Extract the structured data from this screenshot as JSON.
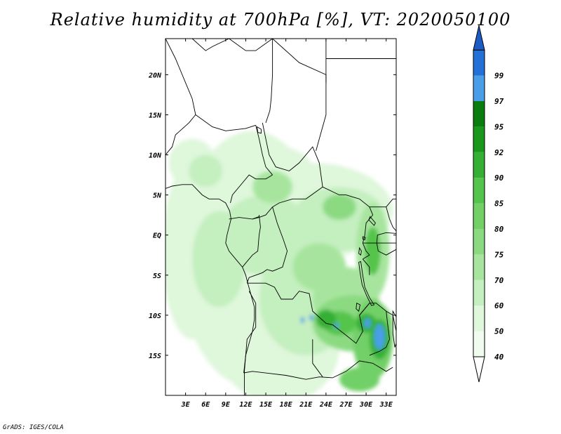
{
  "title": "Relative humidity at 700hPa [%], VT: 2020050100",
  "variable": "Relative humidity",
  "level": "700hPa",
  "units": "%",
  "valid_time": "2020050100",
  "credit": "GrADS: IGES/COLA",
  "axes": {
    "lon_range": [
      0,
      34.5
    ],
    "lat_range": [
      -20,
      24.5
    ],
    "lon_ticks": [
      {
        "value": 3,
        "label": "3E"
      },
      {
        "value": 6,
        "label": "6E"
      },
      {
        "value": 9,
        "label": "9E"
      },
      {
        "value": 12,
        "label": "12E"
      },
      {
        "value": 15,
        "label": "15E"
      },
      {
        "value": 18,
        "label": "18E"
      },
      {
        "value": 21,
        "label": "21E"
      },
      {
        "value": 24,
        "label": "24E"
      },
      {
        "value": 27,
        "label": "27E"
      },
      {
        "value": 30,
        "label": "30E"
      },
      {
        "value": 33,
        "label": "33E"
      }
    ],
    "lat_ticks": [
      {
        "value": 20,
        "label": "20N"
      },
      {
        "value": 15,
        "label": "15N"
      },
      {
        "value": 10,
        "label": "10N"
      },
      {
        "value": 5,
        "label": "5N"
      },
      {
        "value": 0,
        "label": "EQ"
      },
      {
        "value": -5,
        "label": "5S"
      },
      {
        "value": -10,
        "label": "10S"
      },
      {
        "value": -15,
        "label": "15S"
      }
    ]
  },
  "colorbar": {
    "levels": [
      {
        "label": "40",
        "color": "#f0fcee"
      },
      {
        "label": "50",
        "color": "#dff7db"
      },
      {
        "label": "60",
        "color": "#c4efbf"
      },
      {
        "label": "70",
        "color": "#a7e59f"
      },
      {
        "label": "75",
        "color": "#8bda82"
      },
      {
        "label": "80",
        "color": "#72d067"
      },
      {
        "label": "85",
        "color": "#55c44c"
      },
      {
        "label": "90",
        "color": "#35b034"
      },
      {
        "label": "92",
        "color": "#1a981b"
      },
      {
        "label": "95",
        "color": "#0b7d0e"
      },
      {
        "label": "97",
        "color": "#4a9ee8"
      },
      {
        "label": "99",
        "color": "#2370d6"
      }
    ],
    "below_color": "#ffffff",
    "above_color": "#1a5bc4"
  },
  "humidity_patches": [
    {
      "lon": 4,
      "lat": -2,
      "rx": 4.5,
      "ry": 11,
      "level": 1
    },
    {
      "lon": 13,
      "lat": -3,
      "rx": 11,
      "ry": 16,
      "level": 1
    },
    {
      "lon": 22,
      "lat": 3,
      "rx": 12,
      "ry": 6,
      "level": 1
    },
    {
      "lon": 17,
      "lat": -14,
      "rx": 9,
      "ry": 7,
      "level": 1
    },
    {
      "lon": 4,
      "lat": 9,
      "rx": 3.5,
      "ry": 3,
      "level": 1
    },
    {
      "lon": 17,
      "lat": 8,
      "rx": 5,
      "ry": 3,
      "level": 1
    },
    {
      "lon": 8,
      "lat": -3,
      "rx": 4,
      "ry": 6,
      "level": 2
    },
    {
      "lon": 15,
      "lat": 0,
      "rx": 7,
      "ry": 5,
      "level": 2
    },
    {
      "lon": 21,
      "lat": -8,
      "rx": 7,
      "ry": 7,
      "level": 2
    },
    {
      "lon": 26,
      "lat": 2,
      "rx": 7,
      "ry": 4,
      "level": 2
    },
    {
      "lon": 6,
      "lat": 8,
      "rx": 2.5,
      "ry": 2,
      "level": 2
    },
    {
      "lon": 23,
      "lat": -4,
      "rx": 4,
      "ry": 3,
      "level": 3
    },
    {
      "lon": 27,
      "lat": -8,
      "rx": 5,
      "ry": 4,
      "level": 3
    },
    {
      "lon": 16,
      "lat": 6,
      "rx": 3,
      "ry": 2,
      "level": 3
    },
    {
      "lon": 26,
      "lat": 3.5,
      "rx": 2.5,
      "ry": 1.6,
      "level": 4
    },
    {
      "lon": 31,
      "lat": -2,
      "rx": 2.5,
      "ry": 6,
      "level": 3
    },
    {
      "lon": 28,
      "lat": -11,
      "rx": 6,
      "ry": 3.5,
      "level": 4
    },
    {
      "lon": 31,
      "lat": -13,
      "rx": 3,
      "ry": 5,
      "level": 5
    },
    {
      "lon": 29,
      "lat": -18,
      "rx": 3,
      "ry": 1.5,
      "level": 5
    },
    {
      "lon": 26,
      "lat": -11,
      "rx": 2.5,
      "ry": 1.5,
      "level": 6
    },
    {
      "lon": 30,
      "lat": -11,
      "rx": 1.5,
      "ry": 1.2,
      "level": 7
    },
    {
      "lon": 32,
      "lat": -13,
      "rx": 1.5,
      "ry": 2.5,
      "level": 7
    },
    {
      "lon": 31,
      "lat": -2,
      "rx": 1.2,
      "ry": 3,
      "level": 6
    },
    {
      "lon": 24,
      "lat": -10.5,
      "rx": 1.5,
      "ry": 1.2,
      "level": 7
    },
    {
      "lon": 32,
      "lat": -12.7,
      "rx": 0.8,
      "ry": 1.6,
      "level": 10
    },
    {
      "lon": 30.2,
      "lat": -11,
      "rx": 0.5,
      "ry": 0.6,
      "level": 10
    },
    {
      "lon": 20.5,
      "lat": -10.6,
      "rx": 0.3,
      "ry": 0.4,
      "level": 10
    },
    {
      "lon": 21.8,
      "lat": -10.3,
      "rx": 0.3,
      "ry": 0.4,
      "level": 10
    },
    {
      "lon": 25.6,
      "lat": -11.3,
      "rx": 0.3,
      "ry": 0.4,
      "level": 10
    }
  ],
  "boundaries": [
    [
      [
        0,
        24.5
      ],
      [
        1.5,
        22
      ],
      [
        3,
        19
      ],
      [
        4,
        17
      ],
      [
        4.5,
        15
      ]
    ],
    [
      [
        4.5,
        15
      ],
      [
        3.5,
        14
      ],
      [
        1.5,
        12.5
      ],
      [
        1,
        11
      ],
      [
        0,
        10
      ]
    ],
    [
      [
        4,
        24.5
      ],
      [
        6,
        23
      ],
      [
        7,
        23.5
      ],
      [
        9.5,
        24.5
      ]
    ],
    [
      [
        9.5,
        24.5
      ],
      [
        12,
        23
      ],
      [
        13.5,
        23
      ],
      [
        16,
        24.5
      ]
    ],
    [
      [
        4.5,
        15
      ],
      [
        7,
        13.5
      ],
      [
        9,
        13
      ],
      [
        12,
        13.3
      ],
      [
        13.5,
        13.7
      ]
    ],
    [
      [
        13.5,
        13.7
      ],
      [
        14,
        12
      ],
      [
        14.5,
        10
      ],
      [
        15,
        8.5
      ],
      [
        16,
        7.5
      ]
    ],
    [
      [
        14.5,
        14
      ],
      [
        15,
        12
      ],
      [
        15.5,
        10
      ],
      [
        16.5,
        8.5
      ],
      [
        18.5,
        8
      ],
      [
        20,
        9
      ],
      [
        22,
        11
      ],
      [
        23,
        9
      ],
      [
        23.5,
        6
      ]
    ],
    [
      [
        16,
        24.5
      ],
      [
        16,
        20
      ],
      [
        15.8,
        17
      ],
      [
        15.6,
        15.5
      ],
      [
        15,
        14
      ]
    ],
    [
      [
        16,
        24.5
      ],
      [
        20,
        21.5
      ],
      [
        24,
        20
      ],
      [
        24,
        19
      ]
    ],
    [
      [
        24,
        24.5
      ],
      [
        24,
        19.5
      ],
      [
        24,
        15
      ],
      [
        23,
        12
      ],
      [
        22.5,
        10.5
      ]
    ],
    [
      [
        24,
        22
      ],
      [
        29,
        22
      ],
      [
        34.5,
        22
      ]
    ],
    [
      [
        23.5,
        6
      ],
      [
        26,
        5
      ],
      [
        27,
        5
      ],
      [
        29,
        4.5
      ],
      [
        30.5,
        3.5
      ],
      [
        31,
        3.5
      ],
      [
        33,
        3.5
      ],
      [
        34,
        4.5
      ],
      [
        34.5,
        4.5
      ]
    ],
    [
      [
        16,
        3.5
      ],
      [
        17,
        4
      ],
      [
        19,
        4.5
      ],
      [
        21,
        4.5
      ],
      [
        23.5,
        6
      ]
    ],
    [
      [
        13,
        2
      ],
      [
        14,
        2.2
      ],
      [
        15,
        2.5
      ],
      [
        16,
        3.5
      ]
    ],
    [
      [
        9.5,
        2
      ],
      [
        11,
        2.2
      ],
      [
        13,
        2
      ],
      [
        14,
        2.3
      ]
    ],
    [
      [
        9.7,
        4
      ],
      [
        10,
        5
      ],
      [
        11.5,
        6.5
      ],
      [
        12.5,
        7.5
      ],
      [
        13.5,
        7
      ],
      [
        15,
        7
      ],
      [
        16,
        7.5
      ]
    ],
    [
      [
        14,
        2.5
      ],
      [
        14.2,
        1
      ],
      [
        14,
        0
      ],
      [
        13.8,
        -2
      ],
      [
        13,
        -2.5
      ],
      [
        12,
        -3.5
      ],
      [
        11.5,
        -4
      ]
    ],
    [
      [
        16,
        3.5
      ],
      [
        16.7,
        1.5
      ],
      [
        17.6,
        -0.5
      ],
      [
        18.2,
        -2
      ],
      [
        17.5,
        -4
      ],
      [
        16,
        -4.5
      ],
      [
        15.2,
        -4.3
      ],
      [
        14.5,
        -4.7
      ],
      [
        13.5,
        -5
      ],
      [
        12.5,
        -5.3
      ],
      [
        12.2,
        -6
      ]
    ],
    [
      [
        12.2,
        -6
      ],
      [
        13,
        -6
      ],
      [
        15,
        -6
      ],
      [
        16.3,
        -6.5
      ],
      [
        17.3,
        -8
      ],
      [
        19,
        -8
      ],
      [
        20,
        -7
      ],
      [
        21.5,
        -7.3
      ],
      [
        22,
        -9.5
      ],
      [
        24,
        -11
      ],
      [
        25,
        -11.2
      ],
      [
        27,
        -12.5
      ],
      [
        28.5,
        -13.5
      ],
      [
        29.5,
        -12
      ],
      [
        29,
        -10
      ],
      [
        30.5,
        -8.5
      ]
    ],
    [
      [
        11.7,
        -17.2
      ],
      [
        12,
        -15
      ],
      [
        12.2,
        -13
      ],
      [
        13.5,
        -11.5
      ],
      [
        13.5,
        -8.5
      ],
      [
        12.5,
        -7
      ]
    ],
    [
      [
        11.7,
        -17.2
      ],
      [
        13,
        -17
      ],
      [
        18,
        -17.5
      ],
      [
        21,
        -18
      ],
      [
        23,
        -17.7
      ],
      [
        25,
        -17.8
      ]
    ],
    [
      [
        22,
        -13
      ],
      [
        22,
        -16
      ],
      [
        23.5,
        -17.7
      ]
    ],
    [
      [
        25,
        -17.8
      ],
      [
        27,
        -17
      ],
      [
        29,
        -15.7
      ],
      [
        31,
        -16
      ],
      [
        32,
        -16.5
      ],
      [
        33,
        -17
      ],
      [
        34,
        -16.5
      ]
    ],
    [
      [
        29,
        -10
      ],
      [
        30.5,
        -8.5
      ],
      [
        31.5,
        -8.5
      ],
      [
        33,
        -9.5
      ],
      [
        34,
        -10
      ],
      [
        34.5,
        -12
      ]
    ],
    [
      [
        33,
        -9.5
      ],
      [
        33.2,
        -11
      ],
      [
        33.5,
        -13
      ],
      [
        33,
        -14
      ],
      [
        32,
        -14.5
      ],
      [
        30.5,
        -15
      ]
    ],
    [
      [
        29.5,
        -1
      ],
      [
        30.5,
        -1
      ],
      [
        31,
        -1
      ],
      [
        34,
        -1
      ],
      [
        34.5,
        -1
      ]
    ],
    [
      [
        29.5,
        -1
      ],
      [
        30,
        -2
      ],
      [
        30.5,
        -2.5
      ],
      [
        29.5,
        -3
      ]
    ],
    [
      [
        29.5,
        -3
      ],
      [
        30,
        -3.5
      ],
      [
        30.5,
        -4
      ],
      [
        30.5,
        -5
      ]
    ],
    [
      [
        30.5,
        3.5
      ],
      [
        31,
        2.5
      ],
      [
        30,
        1.5
      ],
      [
        29.8,
        0
      ],
      [
        29.5,
        -1
      ]
    ],
    [
      [
        34.5,
        0.5
      ],
      [
        34,
        1
      ],
      [
        33.5,
        2
      ],
      [
        33,
        3.5
      ]
    ]
  ],
  "coastline": [
    [
      0,
      5.8
    ],
    [
      1,
      6.1
    ],
    [
      2.5,
      6.3
    ],
    [
      4,
      6.3
    ],
    [
      5.5,
      5
    ],
    [
      6.5,
      4.5
    ],
    [
      8,
      4.5
    ],
    [
      9,
      4
    ],
    [
      9.6,
      3
    ],
    [
      9.8,
      2
    ],
    [
      9.5,
      1
    ],
    [
      9.2,
      0
    ],
    [
      9,
      -1
    ],
    [
      9.5,
      -2
    ],
    [
      10.5,
      -3
    ],
    [
      11.5,
      -4
    ],
    [
      12,
      -5
    ],
    [
      12.3,
      -6
    ],
    [
      12.8,
      -7.5
    ],
    [
      13.3,
      -9
    ],
    [
      13.3,
      -10.5
    ],
    [
      13,
      -12
    ],
    [
      12.5,
      -13.5
    ],
    [
      12,
      -15
    ],
    [
      11.8,
      -17
    ],
    [
      11.8,
      -20
    ]
  ],
  "lakes": [
    {
      "name": "Lake Tanganyika",
      "points": [
        [
          29.2,
          -3.3
        ],
        [
          29.5,
          -5
        ],
        [
          29.8,
          -6.5
        ],
        [
          30.5,
          -7.8
        ],
        [
          31.2,
          -8.7
        ],
        [
          30.8,
          -8.8
        ],
        [
          30.1,
          -7.6
        ],
        [
          29.4,
          -6.2
        ],
        [
          29.1,
          -4.7
        ],
        [
          28.9,
          -3.4
        ]
      ]
    },
    {
      "name": "Lake Kivu",
      "points": [
        [
          29,
          -1.6
        ],
        [
          29.3,
          -2
        ],
        [
          29.2,
          -2.5
        ],
        [
          28.9,
          -2.3
        ]
      ]
    },
    {
      "name": "Lake Albert",
      "points": [
        [
          30.6,
          2.3
        ],
        [
          31.4,
          1.5
        ],
        [
          31.2,
          1.2
        ],
        [
          30.4,
          1.9
        ]
      ]
    },
    {
      "name": "Lake Edward",
      "points": [
        [
          29.5,
          -0.2
        ],
        [
          29.9,
          -0.3
        ],
        [
          29.8,
          -0.6
        ],
        [
          29.5,
          -0.5
        ]
      ]
    },
    {
      "name": "Lake Victoria",
      "points": [
        [
          31.7,
          0
        ],
        [
          33,
          0.3
        ],
        [
          34.5,
          0.2
        ],
        [
          34.5,
          -1.8
        ],
        [
          33,
          -2.5
        ],
        [
          31.8,
          -2
        ],
        [
          31.6,
          -1
        ]
      ]
    },
    {
      "name": "Lake Mweru",
      "points": [
        [
          28.6,
          -8.5
        ],
        [
          29.1,
          -8.7
        ],
        [
          28.9,
          -9.5
        ],
        [
          28.5,
          -9.2
        ]
      ]
    },
    {
      "name": "Lake Malawi",
      "points": [
        [
          34,
          -9.5
        ],
        [
          34.5,
          -10.2
        ],
        [
          34.5,
          -13.5
        ],
        [
          34.3,
          -14
        ],
        [
          34,
          -12.3
        ]
      ]
    },
    {
      "name": "Lake Chad",
      "points": [
        [
          13.7,
          13.5
        ],
        [
          14.3,
          13.2
        ],
        [
          14.3,
          12.7
        ],
        [
          13.8,
          12.8
        ]
      ]
    }
  ]
}
